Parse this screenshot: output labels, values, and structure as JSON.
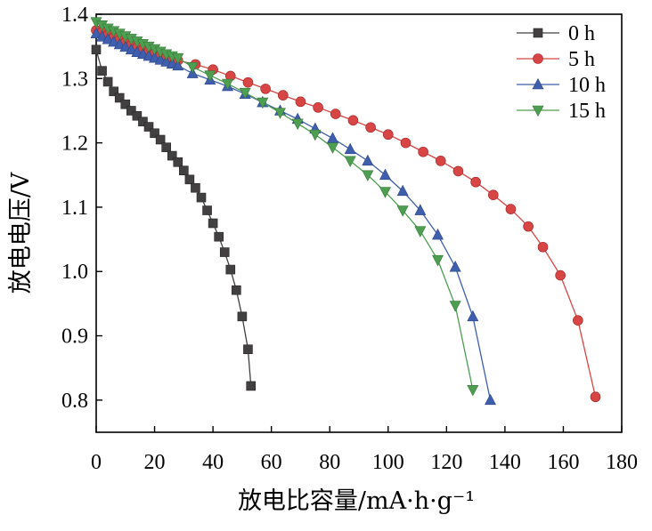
{
  "chart_data": {
    "type": "line",
    "title": "",
    "xlabel": "放电比容量/mA·h·g⁻¹",
    "ylabel": "放电电压/V",
    "xlim": [
      0,
      180
    ],
    "ylim": [
      0.75,
      1.4
    ],
    "xticks": [
      0,
      20,
      40,
      60,
      80,
      100,
      120,
      140,
      160,
      180
    ],
    "yticks": [
      0.8,
      0.9,
      1.0,
      1.1,
      1.2,
      1.3,
      1.4
    ],
    "xtick_labels": [
      "0",
      "20",
      "40",
      "60",
      "80",
      "100",
      "120",
      "140",
      "160",
      "180"
    ],
    "ytick_labels": [
      "0.8",
      "0.9",
      "1.0",
      "1.1",
      "1.2",
      "1.3",
      "1.4"
    ],
    "grid": false,
    "legend_position": "top-right",
    "series": [
      {
        "name": "0 h",
        "marker": "square",
        "color": "#424040",
        "x": [
          0,
          2,
          4,
          6,
          8,
          10,
          12,
          14,
          16,
          18,
          20,
          22,
          24,
          26,
          28,
          30,
          32,
          34,
          36,
          38,
          40,
          42,
          44,
          46,
          48,
          50,
          52,
          53
        ],
        "y": [
          1.345,
          1.312,
          1.295,
          1.28,
          1.27,
          1.26,
          1.25,
          1.242,
          1.233,
          1.225,
          1.215,
          1.205,
          1.193,
          1.18,
          1.17,
          1.157,
          1.143,
          1.13,
          1.115,
          1.095,
          1.075,
          1.054,
          1.03,
          1.003,
          0.971,
          0.93,
          0.879,
          0.822
        ]
      },
      {
        "name": "5 h",
        "marker": "circle",
        "color": "#d84545",
        "x": [
          0,
          2,
          4,
          6,
          8,
          10,
          12,
          14,
          16,
          18,
          20,
          22,
          24,
          26,
          28,
          34,
          40,
          46,
          52,
          58,
          64,
          70,
          76,
          82,
          88,
          94,
          100,
          106,
          112,
          118,
          124,
          130,
          136,
          142,
          148,
          153,
          159,
          165,
          171
        ],
        "y": [
          1.375,
          1.372,
          1.368,
          1.364,
          1.36,
          1.356,
          1.352,
          1.348,
          1.345,
          1.342,
          1.339,
          1.336,
          1.333,
          1.33,
          1.328,
          1.322,
          1.314,
          1.304,
          1.294,
          1.284,
          1.274,
          1.264,
          1.255,
          1.245,
          1.235,
          1.224,
          1.213,
          1.2,
          1.186,
          1.172,
          1.156,
          1.139,
          1.119,
          1.097,
          1.07,
          1.038,
          0.994,
          0.924,
          0.805
        ]
      },
      {
        "name": "10 h",
        "marker": "triangle-up",
        "color": "#3f5fae",
        "x": [
          0,
          2,
          4,
          6,
          8,
          10,
          12,
          14,
          16,
          18,
          20,
          22,
          24,
          26,
          28,
          33,
          39,
          45,
          51,
          57,
          63,
          69,
          75,
          81,
          87,
          93,
          99,
          105,
          111,
          117,
          123,
          129,
          135
        ],
        "y": [
          1.37,
          1.365,
          1.361,
          1.357,
          1.353,
          1.349,
          1.345,
          1.341,
          1.338,
          1.335,
          1.332,
          1.329,
          1.326,
          1.323,
          1.32,
          1.308,
          1.298,
          1.288,
          1.276,
          1.263,
          1.25,
          1.237,
          1.222,
          1.207,
          1.19,
          1.172,
          1.15,
          1.125,
          1.095,
          1.057,
          1.007,
          0.93,
          0.8
        ]
      },
      {
        "name": "15 h",
        "marker": "triangle-down",
        "color": "#4e9e52",
        "x": [
          0,
          2,
          4,
          6,
          8,
          10,
          12,
          14,
          16,
          18,
          20,
          22,
          24,
          26,
          28,
          33,
          39,
          45,
          51,
          57,
          63,
          69,
          75,
          81,
          87,
          93,
          99,
          105,
          111,
          117,
          123,
          129
        ],
        "y": [
          1.388,
          1.383,
          1.378,
          1.374,
          1.37,
          1.366,
          1.362,
          1.358,
          1.354,
          1.35,
          1.346,
          1.342,
          1.338,
          1.335,
          1.332,
          1.318,
          1.305,
          1.292,
          1.278,
          1.263,
          1.247,
          1.23,
          1.213,
          1.193,
          1.172,
          1.15,
          1.124,
          1.095,
          1.063,
          1.018,
          0.947,
          0.816
        ]
      }
    ]
  }
}
